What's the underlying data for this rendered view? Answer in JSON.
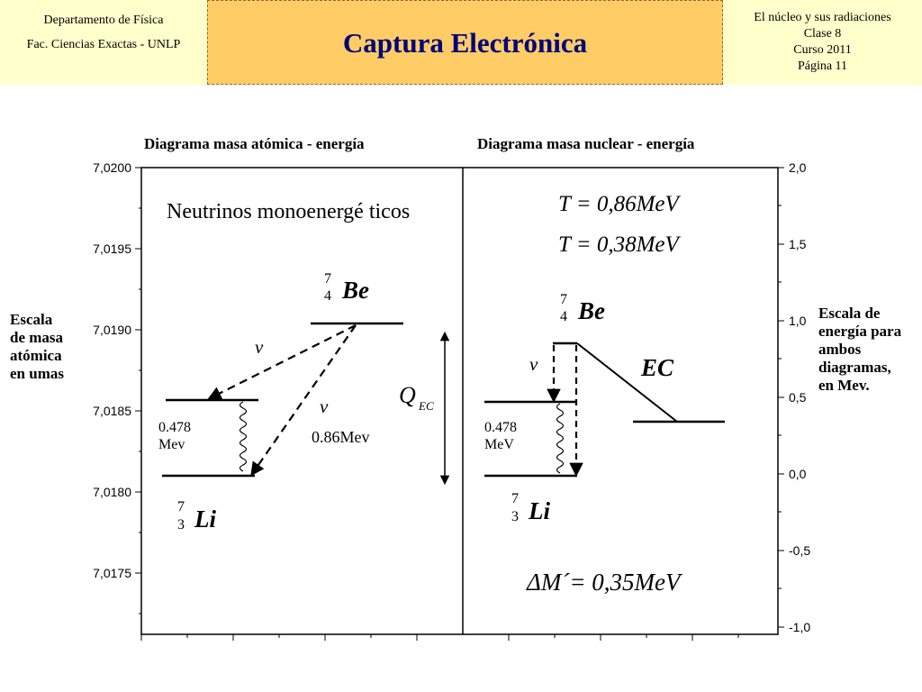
{
  "header": {
    "left_line1": "Departamento de Física",
    "left_line2": "Fac. Ciencias Exactas - UNLP",
    "title": "Captura Electrónica",
    "right_lines": [
      "El núcleo y sus radiaciones",
      "Clase 8",
      "Curso 2011",
      "Página 11"
    ]
  },
  "diagram": {
    "left_title": "Diagrama masa atómica - energía",
    "right_title": "Diagrama masa nuclear - energía",
    "left_axis_ticks": [
      "7,0200",
      "7,0195",
      "7,0190",
      "7,0185",
      "7,0180",
      "7,0175"
    ],
    "right_axis_ticks": [
      "2,0",
      "1,5",
      "1,0",
      "0,5",
      "0,0",
      "-0,5",
      "-1,0"
    ],
    "left_scale_note": [
      "Escala",
      "de masa",
      "atómica",
      "en umas"
    ],
    "right_scale_note": [
      "Escala de",
      "energía para",
      "ambos",
      "diagramas,",
      "en Mev."
    ],
    "neutrinos_text": "Neutrinos monoenergé ticos",
    "nu_symbol": "ν",
    "left_level_label": [
      "0.478",
      "Mev"
    ],
    "left_energy_label": "0.86Mev",
    "q_label": "Q",
    "q_sub": "EC",
    "right_level_label": [
      "0.478",
      "MeV"
    ],
    "ec_label": "EC",
    "eq_t1": "T = 0,86MeV",
    "eq_t2": "T = 0,38MeV",
    "eq_dm": "ΔM´= 0,35MeV",
    "be": {
      "mass": "7",
      "z": "4",
      "sym": "Be"
    },
    "li": {
      "mass": "7",
      "z": "3",
      "sym": "Li"
    }
  }
}
